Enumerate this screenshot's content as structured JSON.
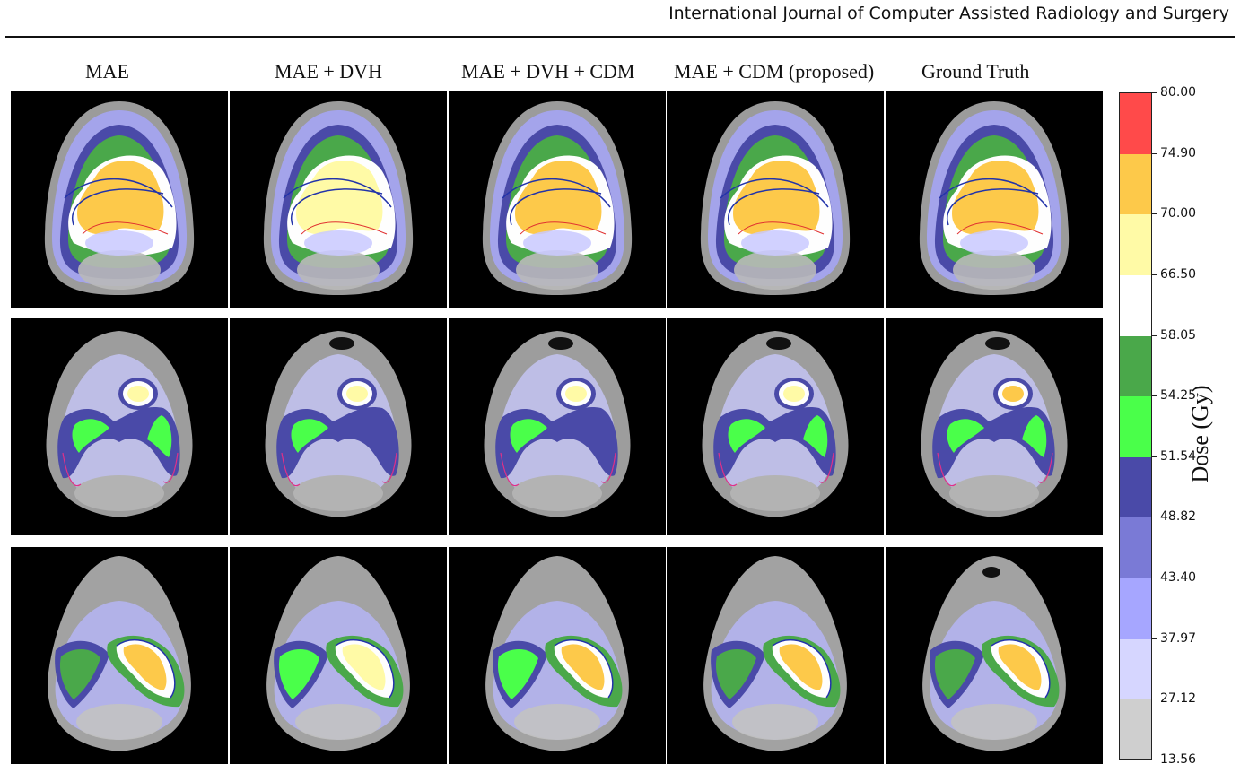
{
  "journal_header": "International Journal of Computer Assisted Radiology and Surgery",
  "columns": [
    "MAE",
    "MAE + DVH",
    "MAE + DVH + CDM",
    "MAE + CDM (proposed)",
    "Ground Truth"
  ],
  "colorbar": {
    "title": "Dose (Gy)",
    "ticks": [
      "80.00",
      "74.90",
      "70.00",
      "66.50",
      "58.05",
      "54.25",
      "51.54",
      "48.82",
      "43.40",
      "37.97",
      "27.12",
      "13.56"
    ],
    "colors": [
      "#ff4a4a",
      "#fdc94a",
      "#fffaa6",
      "#ffffff",
      "#4aa84a",
      "#4aff4a",
      "#4a4aa8",
      "#7a7ad6",
      "#a6a6ff",
      "#d6d6ff",
      "#cfcfcf"
    ]
  },
  "rows": [
    {
      "name": "row-1"
    },
    {
      "name": "row-2"
    },
    {
      "name": "row-3"
    }
  ]
}
